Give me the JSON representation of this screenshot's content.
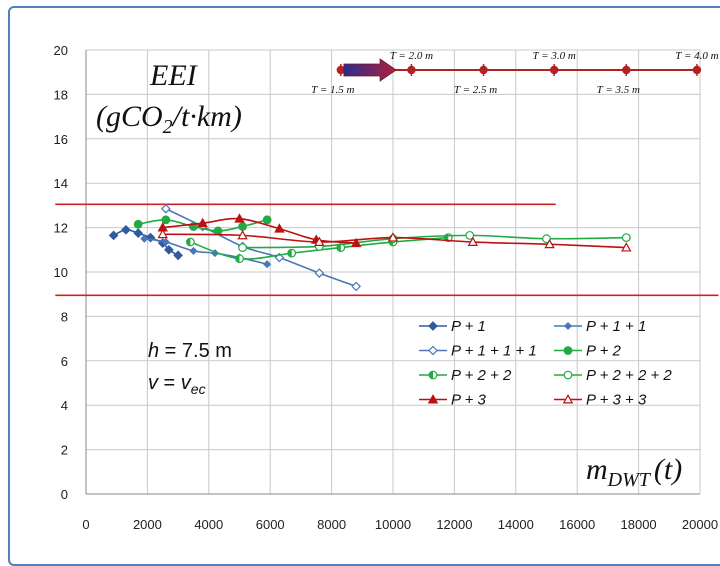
{
  "chart_data": {
    "type": "line",
    "ylabel_main": "EEI",
    "ylabel_unit": "(gCO2/t·km)",
    "ylabel_parts": {
      "open": "(gCO",
      "sub": "2",
      "rest": "/t·km)"
    },
    "xlabel_parts": {
      "m": "m",
      "sub": "DWT",
      "rest": "(t)"
    },
    "xlim": [
      0,
      20000
    ],
    "ylim": [
      0,
      20
    ],
    "xticks": [
      "0",
      "2000",
      "4000",
      "6000",
      "8000",
      "10000",
      "12000",
      "14000",
      "16000",
      "18000",
      "20000"
    ],
    "yticks": [
      "0",
      "2",
      "4",
      "6",
      "8",
      "10",
      "12",
      "14",
      "16",
      "18",
      "20"
    ],
    "annotation": {
      "h": {
        "lhs": "h",
        "rhs": "7.5 m"
      },
      "v": {
        "lhs": "v",
        "rhs": "v",
        "sub": "ec"
      }
    },
    "reference_lines": [
      {
        "y": 13.05,
        "x_from": -1000,
        "x_to": 15300,
        "color": "#cc2222"
      },
      {
        "y": 8.95,
        "x_from": -1000,
        "x_to": 20600,
        "color": "#cc2222"
      }
    ],
    "draft_scale": {
      "y": 19.1,
      "color": "#b22222",
      "points": [
        8300,
        10600,
        12950,
        15250,
        17600,
        19900
      ],
      "labels": [
        {
          "text": "T = 1.5 m",
          "x": 8300,
          "pos": "below"
        },
        {
          "text": "T = 2.0 m",
          "x": 10600,
          "pos": "above"
        },
        {
          "text": "T = 2.5 m",
          "x": 12950,
          "pos": "below"
        },
        {
          "text": "T = 3.0 m",
          "x": 15250,
          "pos": "above"
        },
        {
          "text": "T = 3.5 m",
          "x": 17600,
          "pos": "below"
        },
        {
          "text": "T = 4.0 m",
          "x": 19900,
          "pos": "above"
        }
      ],
      "arrow": {
        "from": 8400,
        "to": 10100
      }
    },
    "series": [
      {
        "name": "P + 1",
        "color": "#2e5c9e",
        "marker": "diamond",
        "fill": true,
        "x": [
          900,
          1300,
          1700,
          2100,
          2500,
          2700,
          3000
        ],
        "y": [
          11.65,
          11.9,
          11.75,
          11.55,
          11.3,
          11.0,
          10.75
        ]
      },
      {
        "name": "P + 1 + 1",
        "color": "#4a76b8",
        "marker": "diamond-small",
        "fill": true,
        "x": [
          1900,
          2600,
          3500,
          4200,
          5000,
          5900
        ],
        "y": [
          11.5,
          11.35,
          10.95,
          10.85,
          10.65,
          10.35
        ]
      },
      {
        "name": "P + 1 + 1 + 1",
        "color": "#4a76b8",
        "marker": "diamond",
        "fill": false,
        "x": [
          2600,
          3800,
          5100,
          6300,
          7600,
          8800
        ],
        "y": [
          12.85,
          12.05,
          11.15,
          10.65,
          9.95,
          9.35
        ]
      },
      {
        "name": "P + 2",
        "color": "#22aa44",
        "marker": "circle",
        "fill": true,
        "x": [
          1700,
          2600,
          3500,
          4300,
          5100,
          5900
        ],
        "y": [
          12.15,
          12.35,
          12.05,
          11.85,
          12.05,
          12.35
        ]
      },
      {
        "name": "P + 2 + 2",
        "color": "#22aa44",
        "marker": "half-circle",
        "fill": true,
        "x": [
          3400,
          5000,
          6700,
          8300,
          10000,
          11800
        ],
        "y": [
          11.35,
          10.6,
          10.85,
          11.1,
          11.35,
          11.55
        ]
      },
      {
        "name": "P + 2 + 2 + 2",
        "color": "#22aa44",
        "marker": "circle",
        "fill": false,
        "x": [
          5100,
          7600,
          10000,
          12500,
          15000,
          17600
        ],
        "y": [
          11.1,
          11.15,
          11.5,
          11.65,
          11.5,
          11.55
        ]
      },
      {
        "name": "P + 3",
        "color": "#bb1111",
        "marker": "triangle",
        "fill": true,
        "x": [
          2500,
          3800,
          5000,
          6300,
          7500,
          8800
        ],
        "y": [
          12.0,
          12.2,
          12.4,
          11.95,
          11.45,
          11.3
        ]
      },
      {
        "name": "P + 3 + 3",
        "color": "#bb1111",
        "marker": "triangle",
        "fill": false,
        "x": [
          2500,
          5100,
          7600,
          10000,
          12600,
          15100,
          17600
        ],
        "y": [
          11.7,
          11.65,
          11.35,
          11.55,
          11.35,
          11.25,
          11.1
        ]
      }
    ],
    "grid": true,
    "legend_placement": "middle-right"
  }
}
